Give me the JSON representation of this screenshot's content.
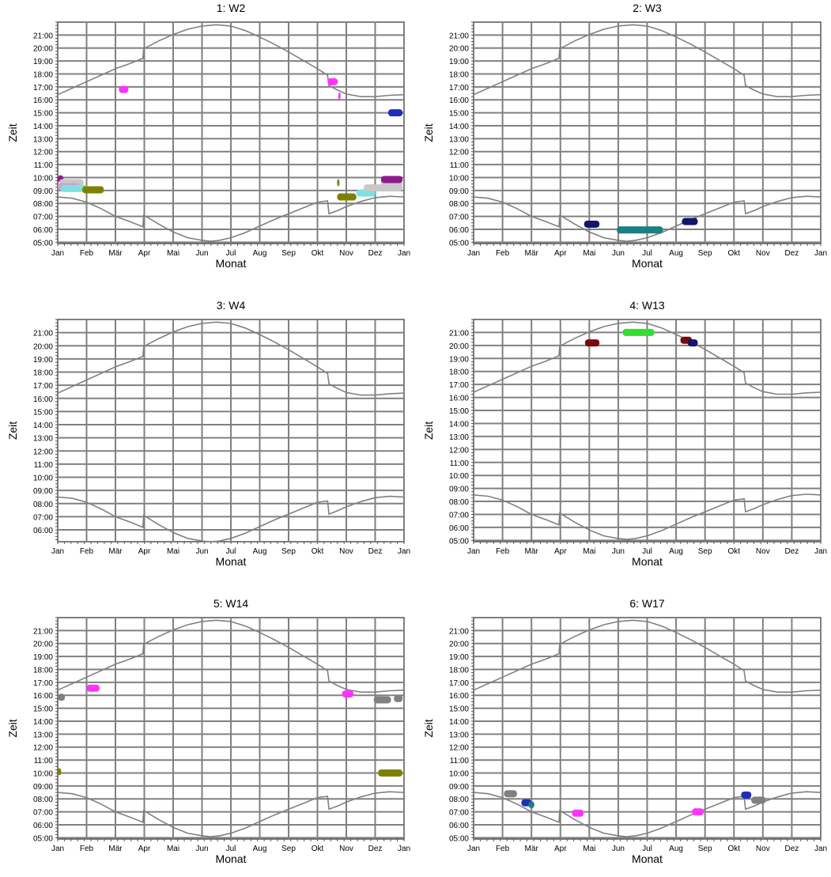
{
  "chart_data": [
    {
      "type": "scatter",
      "title": "1: W2",
      "xlabel": "Monat",
      "ylabel": "Zeit",
      "yrange": [
        4.9,
        22.0
      ],
      "marks": [
        {
          "month": 2.12,
          "month_end": 2.45,
          "time": 16.8,
          "color": "#ff33ff"
        },
        {
          "month": 9.35,
          "month_end": 9.7,
          "time": 17.4,
          "color": "#ff33ff"
        },
        {
          "month": 9.72,
          "month_end": 9.78,
          "time": 16.3,
          "color": "#ff33ff"
        },
        {
          "month": 11.45,
          "month_end": 11.95,
          "time": 15.0,
          "color": "#1e2fb8"
        },
        {
          "month": 0.0,
          "month_end": 0.2,
          "time": 9.9,
          "color": "#8c1a8c"
        },
        {
          "month": 0.05,
          "month_end": 0.9,
          "time": 9.6,
          "color": "#c8c8c8"
        },
        {
          "month": 0.0,
          "month_end": 0.75,
          "time": 9.3,
          "color": "#cfa0cf"
        },
        {
          "month": 0.1,
          "month_end": 1.05,
          "time": 9.15,
          "color": "#7fe0e0"
        },
        {
          "month": 0.85,
          "month_end": 1.6,
          "time": 9.05,
          "color": "#808000"
        },
        {
          "month": 9.68,
          "month_end": 9.74,
          "time": 9.6,
          "color": "#808000"
        },
        {
          "month": 9.68,
          "month_end": 10.35,
          "time": 8.5,
          "color": "#808000"
        },
        {
          "month": 10.35,
          "month_end": 11.0,
          "time": 8.8,
          "color": "#7fe0e0"
        },
        {
          "month": 10.6,
          "month_end": 11.95,
          "time": 9.2,
          "color": "#c8c8c8"
        },
        {
          "month": 11.2,
          "month_end": 11.95,
          "time": 9.55,
          "color": "#c8c8c8"
        },
        {
          "month": 11.2,
          "month_end": 11.95,
          "time": 9.85,
          "color": "#8c1a8c"
        }
      ]
    },
    {
      "type": "scatter",
      "title": "2: W3",
      "xlabel": "Monat",
      "ylabel": "Zeit",
      "yrange": [
        4.9,
        22.0
      ],
      "marks": [
        {
          "month": 3.82,
          "month_end": 4.35,
          "time": 6.4,
          "color": "#14146e"
        },
        {
          "month": 4.95,
          "month_end": 6.55,
          "time": 5.95,
          "color": "#1a8080"
        },
        {
          "month": 7.2,
          "month_end": 7.75,
          "time": 6.6,
          "color": "#14146e"
        }
      ]
    },
    {
      "type": "scatter",
      "title": "3: W4",
      "xlabel": "Monat",
      "ylabel": "Zeit",
      "yrange": [
        5.1,
        22.0
      ],
      "marks": []
    },
    {
      "type": "scatter",
      "title": "4: W13",
      "xlabel": "Monat",
      "ylabel": "Zeit",
      "yrange": [
        4.9,
        22.0
      ],
      "marks": [
        {
          "month": 3.85,
          "month_end": 4.35,
          "time": 20.2,
          "color": "#7a0a0a"
        },
        {
          "month": 5.15,
          "month_end": 6.25,
          "time": 21.0,
          "color": "#33dd33"
        },
        {
          "month": 7.15,
          "month_end": 7.55,
          "time": 20.4,
          "color": "#7a0a0a"
        },
        {
          "month": 7.4,
          "month_end": 7.75,
          "time": 20.2,
          "color": "#14146e"
        }
      ]
    },
    {
      "type": "scatter",
      "title": "5: W14",
      "xlabel": "Monat",
      "ylabel": "Zeit",
      "yrange": [
        4.9,
        22.0
      ],
      "marks": [
        {
          "month": 0.0,
          "month_end": 0.25,
          "time": 15.85,
          "color": "#808080"
        },
        {
          "month": 1.0,
          "month_end": 1.45,
          "time": 16.55,
          "color": "#ff33ff"
        },
        {
          "month": 9.85,
          "month_end": 10.25,
          "time": 16.1,
          "color": "#ff33ff"
        },
        {
          "month": 10.95,
          "month_end": 11.55,
          "time": 15.65,
          "color": "#808080"
        },
        {
          "month": 11.65,
          "month_end": 11.95,
          "time": 15.75,
          "color": "#808080"
        },
        {
          "month": 0.0,
          "month_end": 0.12,
          "time": 10.1,
          "color": "#808000"
        },
        {
          "month": 11.1,
          "month_end": 11.95,
          "time": 10.0,
          "color": "#808000"
        }
      ]
    },
    {
      "type": "scatter",
      "title": "6: W17",
      "xlabel": "Monat",
      "ylabel": "Zeit",
      "yrange": [
        4.9,
        22.0
      ],
      "marks": [
        {
          "month": 1.05,
          "month_end": 1.5,
          "time": 8.4,
          "color": "#808080"
        },
        {
          "month": 1.65,
          "month_end": 2.0,
          "time": 7.7,
          "color": "#1e2fb8"
        },
        {
          "month": 1.9,
          "month_end": 2.1,
          "time": 7.55,
          "color": "#1a8080"
        },
        {
          "month": 3.4,
          "month_end": 3.8,
          "time": 6.9,
          "color": "#ff33ff"
        },
        {
          "month": 7.55,
          "month_end": 7.95,
          "time": 7.0,
          "color": "#ff33ff"
        },
        {
          "month": 9.25,
          "month_end": 9.6,
          "time": 8.3,
          "color": "#1e2fb8"
        },
        {
          "month": 9.6,
          "month_end": 10.1,
          "time": 7.9,
          "color": "#808080"
        }
      ]
    }
  ],
  "months": [
    "Jan",
    "Feb",
    "Mär",
    "Apr",
    "Mai",
    "Jun",
    "Jul",
    "Aug",
    "Sep",
    "Okt",
    "Nov",
    "Dez",
    "Jan"
  ],
  "time_ticks": [
    "05:00",
    "06:00",
    "07:00",
    "08:00",
    "09:00",
    "10:00",
    "11:00",
    "12:00",
    "13:00",
    "14:00",
    "15:00",
    "16:00",
    "17:00",
    "18:00",
    "19:00",
    "20:00",
    "21:00"
  ],
  "time_ticks_panel3": [
    "06:00",
    "07:00",
    "08:00",
    "09:00",
    "10:00",
    "11:00",
    "12:00",
    "13:00",
    "14:00",
    "15:00",
    "16:00",
    "17:00",
    "18:00",
    "19:00",
    "20:00",
    "21:00"
  ],
  "sun_curves": {
    "color": "#808080",
    "sunrise": [
      [
        0,
        8.5
      ],
      [
        0.5,
        8.4
      ],
      [
        1,
        8.1
      ],
      [
        1.5,
        7.6
      ],
      [
        2,
        7.0
      ],
      [
        2.5,
        6.6
      ],
      [
        2.95,
        6.2
      ],
      [
        2.98,
        7.1
      ],
      [
        3.5,
        6.4
      ],
      [
        4,
        5.8
      ],
      [
        4.5,
        5.35
      ],
      [
        5,
        5.15
      ],
      [
        5.3,
        5.08
      ],
      [
        5.6,
        5.15
      ],
      [
        6,
        5.35
      ],
      [
        6.5,
        5.75
      ],
      [
        7,
        6.25
      ],
      [
        7.5,
        6.75
      ],
      [
        8,
        7.2
      ],
      [
        8.5,
        7.65
      ],
      [
        9,
        8.1
      ],
      [
        9.35,
        8.2
      ],
      [
        9.4,
        7.2
      ],
      [
        9.7,
        7.45
      ],
      [
        10,
        7.75
      ],
      [
        10.5,
        8.15
      ],
      [
        11,
        8.45
      ],
      [
        11.5,
        8.55
      ],
      [
        12,
        8.5
      ]
    ],
    "sunset": [
      [
        0,
        16.4
      ],
      [
        0.5,
        16.9
      ],
      [
        1,
        17.4
      ],
      [
        1.5,
        17.9
      ],
      [
        2,
        18.4
      ],
      [
        2.5,
        18.8
      ],
      [
        2.95,
        19.2
      ],
      [
        2.98,
        19.95
      ],
      [
        3.5,
        20.55
      ],
      [
        4,
        21.05
      ],
      [
        4.5,
        21.45
      ],
      [
        5,
        21.7
      ],
      [
        5.5,
        21.8
      ],
      [
        6,
        21.7
      ],
      [
        6.5,
        21.35
      ],
      [
        7,
        20.85
      ],
      [
        7.5,
        20.3
      ],
      [
        8,
        19.7
      ],
      [
        8.5,
        19.05
      ],
      [
        9,
        18.4
      ],
      [
        9.35,
        17.9
      ],
      [
        9.4,
        17.1
      ],
      [
        9.7,
        16.75
      ],
      [
        10,
        16.45
      ],
      [
        10.5,
        16.25
      ],
      [
        11,
        16.25
      ],
      [
        11.5,
        16.35
      ],
      [
        12,
        16.4
      ]
    ]
  }
}
